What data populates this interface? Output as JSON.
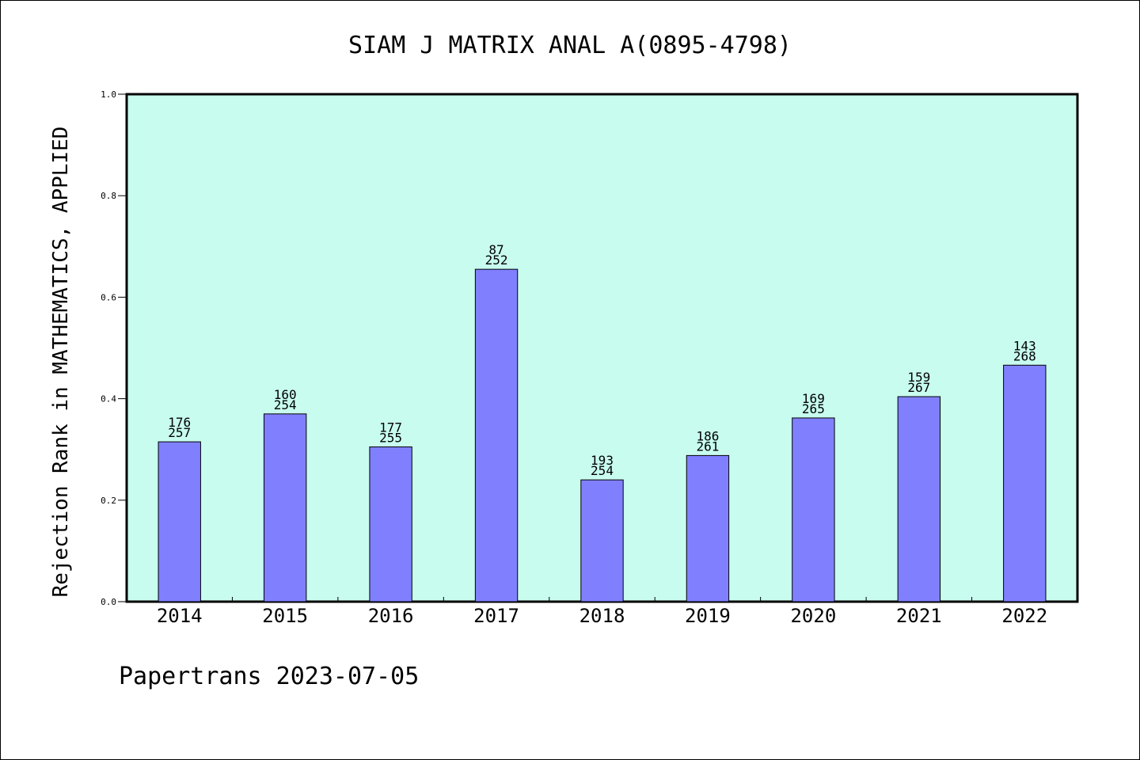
{
  "chart_data": {
    "type": "bar",
    "title": "SIAM J MATRIX ANAL A(0895-4798)",
    "ylabel": "Rejection Rank in MATHEMATICS, APPLIED",
    "xlabel": "",
    "ylim": [
      0,
      1.0
    ],
    "yticks": [
      "0.0",
      "0.2",
      "0.4",
      "0.6",
      "0.8",
      "1.0"
    ],
    "categories": [
      "2014",
      "2015",
      "2016",
      "2017",
      "2018",
      "2019",
      "2020",
      "2021",
      "2022"
    ],
    "values": [
      0.315,
      0.37,
      0.305,
      0.655,
      0.24,
      0.288,
      0.362,
      0.404,
      0.466
    ],
    "rank_labels": [
      "176",
      "160",
      "177",
      "87",
      "193",
      "186",
      "169",
      "159",
      "143"
    ],
    "total_labels": [
      "257",
      "254",
      "255",
      "252",
      "254",
      "261",
      "265",
      "267",
      "268"
    ],
    "grid": false,
    "colors": {
      "bar": "#8080ff",
      "plot_background": "#c8fcef"
    }
  },
  "footer": {
    "text": "Papertrans 2023-07-05"
  }
}
